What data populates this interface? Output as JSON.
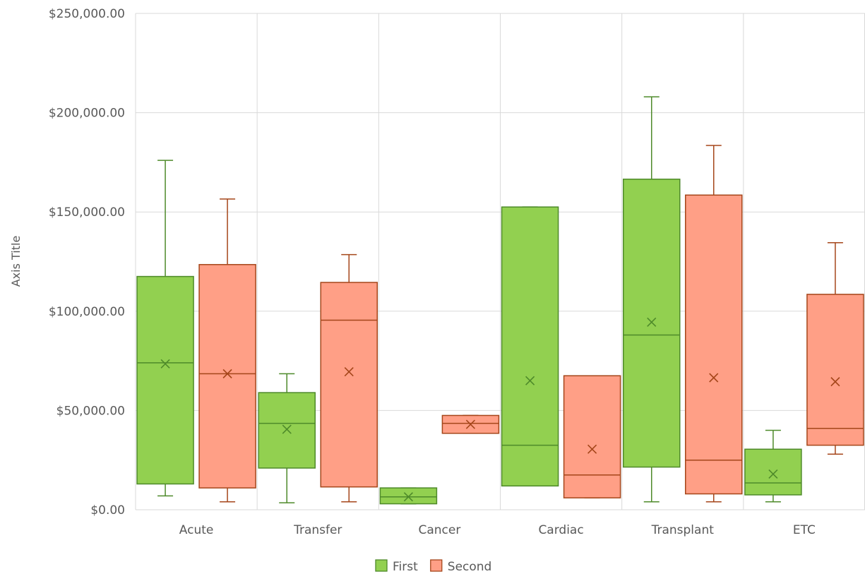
{
  "chart_data": {
    "type": "box",
    "title": "",
    "xlabel": "",
    "ylabel": "Axis Title",
    "ylim": [
      0,
      250000
    ],
    "y_ticks": [
      0,
      50000,
      100000,
      150000,
      200000,
      250000
    ],
    "y_tick_labels": [
      "$0.00",
      "$50,000.00",
      "$100,000.00",
      "$150,000.00",
      "$200,000.00",
      "$250,000.00"
    ],
    "categories": [
      "Acute",
      "Transfer",
      "Cancer",
      "Cardiac",
      "Transplant",
      "ETC"
    ],
    "grid": true,
    "legend_position": "bottom",
    "series": [
      {
        "name": "First",
        "fill": "#92d050",
        "stroke": "#4e8a2a",
        "boxes": [
          {
            "min": 7000,
            "q1": 13000,
            "median": 74000,
            "q3": 117500,
            "max": 176000,
            "mean": 73500
          },
          {
            "min": 3500,
            "q1": 21000,
            "median": 43500,
            "q3": 59000,
            "max": 68500,
            "mean": 40500
          },
          {
            "min": 3000,
            "q1": 3000,
            "median": 6500,
            "q3": 11000,
            "max": 11000,
            "mean": 6500
          },
          {
            "min": 12000,
            "q1": 12000,
            "median": 32500,
            "q3": 152500,
            "max": 152500,
            "mean": 65000
          },
          {
            "min": 4000,
            "q1": 21500,
            "median": 88000,
            "q3": 166500,
            "max": 208000,
            "mean": 94500
          },
          {
            "min": 4000,
            "q1": 7500,
            "median": 13500,
            "q3": 30500,
            "max": 40000,
            "mean": 18000
          }
        ]
      },
      {
        "name": "Second",
        "fill": "#ff9f86",
        "stroke": "#a5461a",
        "boxes": [
          {
            "min": 4000,
            "q1": 11000,
            "median": 68500,
            "q3": 123500,
            "max": 156500,
            "mean": 68500
          },
          {
            "min": 4000,
            "q1": 11500,
            "median": 95500,
            "q3": 114500,
            "max": 128500,
            "mean": 69500
          },
          {
            "min": 38500,
            "q1": 38500,
            "median": 43500,
            "q3": 47500,
            "max": 47500,
            "mean": 43000
          },
          {
            "min": 6000,
            "q1": 6000,
            "median": 17500,
            "q3": 67500,
            "max": 67500,
            "mean": 30500
          },
          {
            "min": 4000,
            "q1": 8000,
            "median": 25000,
            "q3": 158500,
            "max": 183500,
            "mean": 66500
          },
          {
            "min": 28000,
            "q1": 32500,
            "median": 41000,
            "q3": 108500,
            "max": 134500,
            "mean": 64500
          }
        ]
      }
    ]
  }
}
